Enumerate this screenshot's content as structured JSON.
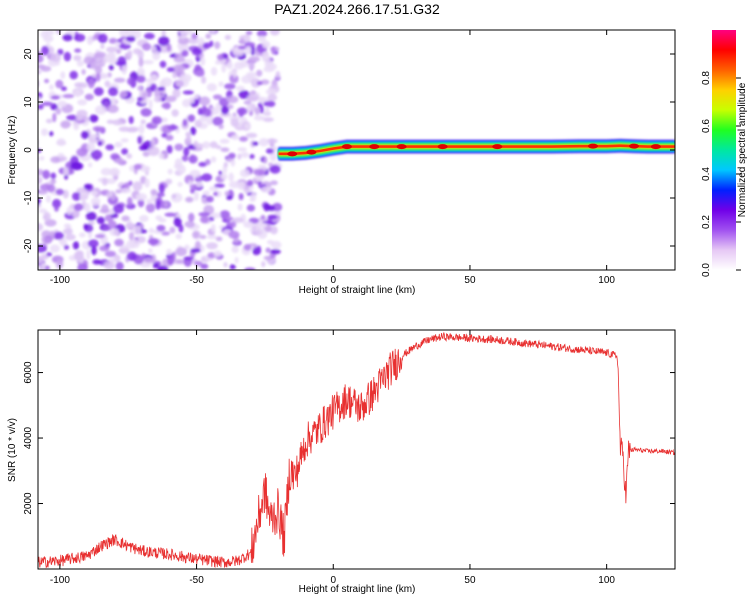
{
  "figure": {
    "title": "PAZ1.2024.266.17.51.G32"
  },
  "chart_data": [
    {
      "type": "heatmap",
      "xlabel": "Height of straight line (km)",
      "ylabel": "Frequency (Hz)",
      "xlim": [
        -108,
        125
      ],
      "ylim": [
        -25,
        25
      ],
      "xticks": [
        -100,
        -50,
        0,
        50,
        100
      ],
      "yticks": [
        -20,
        -10,
        0,
        10,
        20
      ],
      "noise_region_x": [
        -108,
        -20
      ],
      "signal_ridge": {
        "x": [
          -20,
          -15,
          -10,
          -5,
          0,
          5,
          10,
          20,
          30,
          40,
          50,
          60,
          70,
          80,
          90,
          100,
          105,
          110,
          115,
          120,
          125
        ],
        "frequency_hz": [
          -0.8,
          -0.8,
          -0.6,
          -0.2,
          0.3,
          0.7,
          0.7,
          0.7,
          0.7,
          0.7,
          0.7,
          0.7,
          0.7,
          0.7,
          0.8,
          0.8,
          0.9,
          0.8,
          0.7,
          0.7,
          0.7
        ]
      },
      "colorbar": {
        "label": "Normalized spectral amplitude",
        "range": [
          0.0,
          1.0
        ],
        "ticks": [
          "0.0",
          "0.2",
          "0.4",
          "0.6",
          "0.8"
        ],
        "colors": [
          "#ffffff",
          "#e6c8f5",
          "#a050f0",
          "#7000e8",
          "#0020ff",
          "#00c8ff",
          "#00e8a0",
          "#20ff20",
          "#c8ff00",
          "#ffd000",
          "#ff6000",
          "#ff0000",
          "#ff0080"
        ]
      }
    },
    {
      "type": "line",
      "xlabel": "Height of straight line (km)",
      "ylabel": "SNR (10 * v/v)",
      "xlim": [
        -108,
        125
      ],
      "ylim": [
        0,
        7300
      ],
      "xticks": [
        -100,
        -50,
        0,
        50,
        100
      ],
      "yticks": [
        2000,
        4000,
        6000
      ],
      "color": "#e83030",
      "series": [
        {
          "x": [
            -108,
            -100,
            -90,
            -85,
            -80,
            -75,
            -70,
            -60,
            -50,
            -40,
            -35,
            -30,
            -28,
            -25,
            -23,
            -20,
            -18,
            -16,
            -14,
            -10,
            -5,
            0,
            5,
            10,
            15,
            20,
            25,
            30,
            35,
            40,
            50,
            60,
            70,
            80,
            90,
            100,
            104,
            105,
            106,
            107,
            108,
            110,
            115,
            120,
            125
          ],
          "y": [
            200,
            250,
            400,
            700,
            900,
            700,
            550,
            450,
            300,
            200,
            250,
            500,
            1300,
            2400,
            1500,
            1800,
            900,
            3000,
            2800,
            3900,
            4300,
            4800,
            5200,
            4900,
            5400,
            6000,
            6500,
            6800,
            7000,
            7100,
            7050,
            7000,
            6900,
            6800,
            6700,
            6600,
            6500,
            3700,
            3500,
            2200,
            3600,
            3650,
            3600,
            3600,
            3550
          ]
        }
      ]
    }
  ]
}
